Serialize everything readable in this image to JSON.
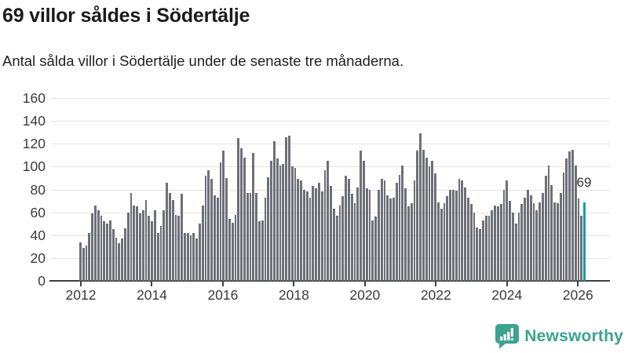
{
  "header": {
    "title": "69 villor såldes i Södertälje",
    "subtitle": "Antal sålda villor i Södertälje under de senaste tre månaderna."
  },
  "chart_data": {
    "type": "bar",
    "title": "69 villor såldes i Södertälje",
    "subtitle": "Antal sålda villor i Södertälje under de senaste tre månaderna.",
    "frequency": "monthly",
    "x_start": "2012-01",
    "x_end": "2026-02",
    "x_tick_labels": [
      "2012",
      "2014",
      "2016",
      "2018",
      "2020",
      "2022",
      "2024",
      "2026"
    ],
    "y_ticks": [
      0,
      20,
      40,
      60,
      80,
      100,
      120,
      140,
      160
    ],
    "ylim": [
      0,
      160
    ],
    "grid": true,
    "legend": false,
    "annotation_label": "69",
    "highlight_last_value": 69,
    "bar_color": "#6e7078",
    "highlight_color": "#149fa2",
    "values": [
      34,
      29,
      31,
      42,
      59,
      66,
      62,
      57,
      52,
      50,
      53,
      45,
      38,
      33,
      37,
      46,
      60,
      77,
      66,
      65,
      59,
      62,
      71,
      57,
      52,
      62,
      42,
      48,
      62,
      86,
      77,
      71,
      58,
      57,
      76,
      42,
      42,
      40,
      42,
      37,
      50,
      66,
      92,
      97,
      89,
      75,
      73,
      104,
      114,
      90,
      54,
      51,
      58,
      125,
      116,
      108,
      77,
      77,
      112,
      77,
      52,
      53,
      73,
      91,
      105,
      122,
      107,
      101,
      102,
      126,
      127,
      100,
      99,
      89,
      88,
      80,
      78,
      73,
      83,
      81,
      86,
      78,
      97,
      105,
      83,
      63,
      57,
      66,
      74,
      92,
      89,
      76,
      68,
      82,
      114,
      105,
      81,
      80,
      53,
      56,
      80,
      89,
      88,
      75,
      72,
      73,
      86,
      93,
      101,
      81,
      65,
      68,
      88,
      114,
      129,
      115,
      108,
      100,
      105,
      94,
      69,
      63,
      68,
      74,
      80,
      80,
      79,
      89,
      88,
      82,
      73,
      67,
      60,
      47,
      45,
      53,
      57,
      57,
      62,
      66,
      65,
      67,
      80,
      88,
      70,
      60,
      50,
      60,
      67,
      73,
      80,
      75,
      68,
      62,
      69,
      77,
      92,
      101,
      84,
      69,
      68,
      77,
      95,
      107,
      113,
      115,
      101,
      72,
      57,
      69
    ]
  },
  "footer": {
    "brand": "Newsworthy"
  },
  "colors": {
    "title_text": "#1a1a1a",
    "axis_text": "#3a3a3a",
    "axis_line": "#3f3f3f",
    "gridline": "#e3e3e3",
    "bar": "#6e7078",
    "highlight": "#149fa2",
    "brand": "#3ba390"
  }
}
